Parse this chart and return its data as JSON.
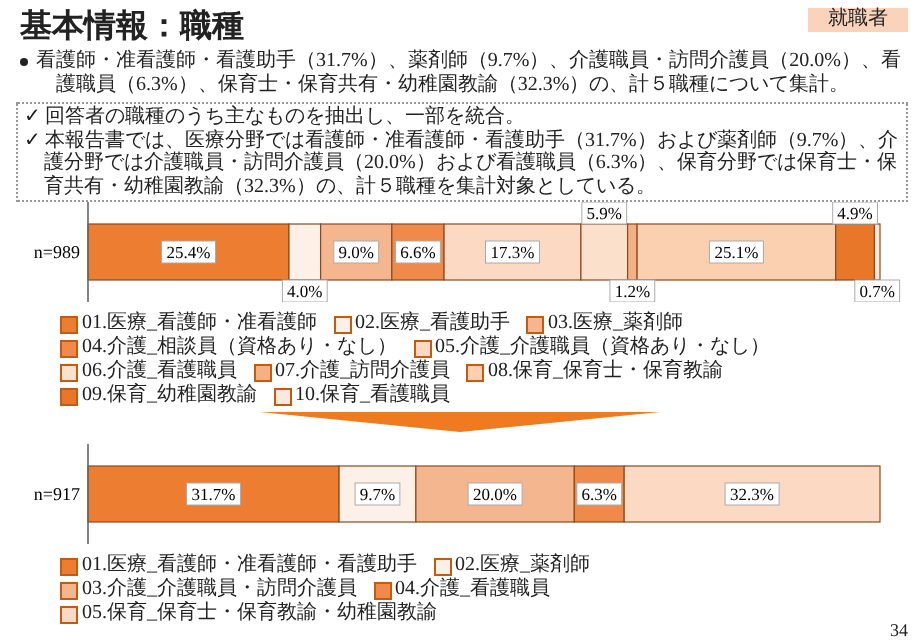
{
  "chart_data": [
    {
      "type": "bar",
      "orientation": "horizontal",
      "stacked": true,
      "legend": "bottom",
      "title": "基本情報：職種",
      "subtitle": "看護師・准看護師・看護助手（31.7%）、薬剤師（9.7%）、介護職員・訪問介護員（20.0%）、看護職員（6.3%）、保育士・保育共有・幼稚園教諭（32.3%）の、計５職種について集計。",
      "annotations": [
        "就職者",
        "✓ 回答者の職種のうち主なものを抽出し、一部を統合。",
        "✓ 本報告書では、医療分野では看護師・准看護師・看護助手（31.7%）および薬剤師（9.7%）、介護分野では介護職員・訪問介護員（20.0%）および看護職員（6.3%）、保育分野では保育士・保育共有・幼稚園教諭（32.3%）の、計５職種を集計対象としている。"
      ],
      "categories": [
        "n=989"
      ],
      "series": [
        {
          "name": "01.医療_看護師・准看護師",
          "color": "#ed7d31",
          "values": [
            25.4
          ],
          "value_labels": [
            "25.4%"
          ]
        },
        {
          "name": "02.医療_看護助手",
          "color": "#fdf0e6",
          "values": [
            4.0
          ],
          "value_labels": [
            "4.0%"
          ]
        },
        {
          "name": "03.医療_薬剤師",
          "color": "#f4b68f",
          "values": [
            9.0
          ],
          "value_labels": [
            "9.0%"
          ]
        },
        {
          "name": "04.介護_相談員（資格あり・なし）",
          "color": "#f08a4b",
          "values": [
            6.6
          ],
          "value_labels": [
            "6.6%"
          ]
        },
        {
          "name": "05.介護_介護職員（資格あり・なし）",
          "color": "#fbd9c2",
          "values": [
            17.3
          ],
          "value_labels": [
            "17.3%"
          ]
        },
        {
          "name": "06.介護_看護職員",
          "color": "#fbe0cc",
          "values": [
            5.9
          ],
          "value_labels": [
            "5.9%"
          ]
        },
        {
          "name": "07.介護_訪問介護員",
          "color": "#f4b183",
          "values": [
            1.2
          ],
          "value_labels": [
            "1.2%"
          ]
        },
        {
          "name": "08.保育_保育士・保育教諭",
          "color": "#fbd0b0",
          "values": [
            25.1
          ],
          "value_labels": [
            "25.1%"
          ]
        },
        {
          "name": "09.保育_幼稚園教諭",
          "color": "#e8772a",
          "values": [
            4.9
          ],
          "value_labels": [
            "4.9%"
          ]
        },
        {
          "name": "10.保育_看護職員",
          "color": "#fde9dc",
          "values": [
            0.7
          ],
          "value_labels": [
            "0.7%"
          ]
        }
      ]
    },
    {
      "type": "bar",
      "orientation": "horizontal",
      "stacked": true,
      "legend": "bottom",
      "annotations": [
        "34"
      ],
      "categories": [
        "n=917"
      ],
      "series": [
        {
          "name": "01.医療_看護師・准看護師・看護助手",
          "color": "#ed7d31",
          "values": [
            31.7
          ],
          "value_labels": [
            "31.7%"
          ]
        },
        {
          "name": "02.医療_薬剤師",
          "color": "#fdf0e6",
          "values": [
            9.7
          ],
          "value_labels": [
            "9.7%"
          ]
        },
        {
          "name": "03.介護_介護職員・訪問介護員",
          "color": "#f4b68f",
          "values": [
            20.0
          ],
          "value_labels": [
            "20.0%"
          ]
        },
        {
          "name": "04.介護_看護職員",
          "color": "#f08a4b",
          "values": [
            6.3
          ],
          "value_labels": [
            "6.3%"
          ]
        },
        {
          "name": "05.保育_保育士・保育教諭・幼稚園教諭",
          "color": "#fbd9c2",
          "values": [
            32.3
          ],
          "value_labels": [
            "32.3%"
          ]
        }
      ]
    }
  ]
}
